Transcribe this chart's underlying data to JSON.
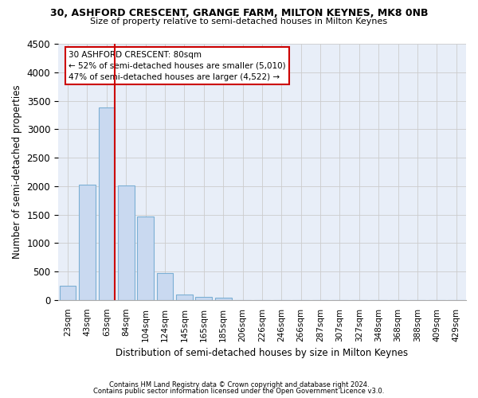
{
  "title1": "30, ASHFORD CRESCENT, GRANGE FARM, MILTON KEYNES, MK8 0NB",
  "title2": "Size of property relative to semi-detached houses in Milton Keynes",
  "xlabel": "Distribution of semi-detached houses by size in Milton Keynes",
  "ylabel": "Number of semi-detached properties",
  "footer1": "Contains HM Land Registry data © Crown copyright and database right 2024.",
  "footer2": "Contains public sector information licensed under the Open Government Licence v3.0.",
  "categories": [
    "23sqm",
    "43sqm",
    "63sqm",
    "84sqm",
    "104sqm",
    "124sqm",
    "145sqm",
    "165sqm",
    "185sqm",
    "206sqm",
    "226sqm",
    "246sqm",
    "266sqm",
    "287sqm",
    "307sqm",
    "327sqm",
    "348sqm",
    "368sqm",
    "388sqm",
    "409sqm",
    "429sqm"
  ],
  "values": [
    250,
    2020,
    3380,
    2010,
    1460,
    475,
    100,
    55,
    45,
    0,
    0,
    0,
    0,
    0,
    0,
    0,
    0,
    0,
    0,
    0,
    0
  ],
  "bar_color": "#c9d9f0",
  "bar_edge_color": "#7bafd4",
  "grid_color": "#cccccc",
  "bg_color": "#e8eef8",
  "annotation_text1": "30 ASHFORD CRESCENT: 80sqm",
  "annotation_text2": "← 52% of semi-detached houses are smaller (5,010)",
  "annotation_text3": "47% of semi-detached houses are larger (4,522) →",
  "annotation_box_color": "#ffffff",
  "annotation_border_color": "#cc0000",
  "red_line_index": 2.42,
  "ylim": [
    0,
    4500
  ],
  "yticks": [
    0,
    500,
    1000,
    1500,
    2000,
    2500,
    3000,
    3500,
    4000,
    4500
  ]
}
